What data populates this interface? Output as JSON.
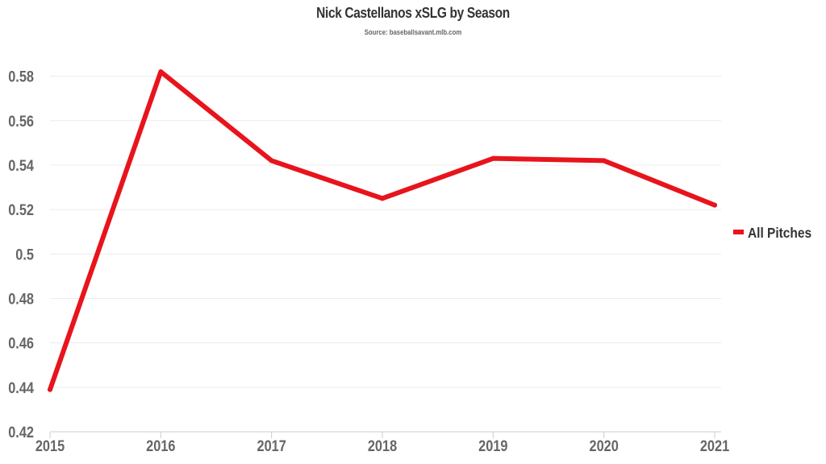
{
  "chart_data": {
    "type": "line",
    "title": "Nick Castellanos xSLG by Season",
    "subtitle": "Source: baseballsavant.mlb.com",
    "xlabel": "",
    "ylabel": "",
    "x": [
      "2015",
      "2016",
      "2017",
      "2018",
      "2019",
      "2020",
      "2021"
    ],
    "ylim": [
      0.42,
      0.59
    ],
    "yticks": [
      0.42,
      0.44,
      0.46,
      0.48,
      0.5,
      0.52,
      0.54,
      0.56,
      0.58
    ],
    "ytick_labels": [
      "0.42",
      "0.44",
      "0.46",
      "0.48",
      "0.5",
      "0.52",
      "0.54",
      "0.56",
      "0.58"
    ],
    "grid": true,
    "legend_position": "right",
    "series": [
      {
        "name": "All Pitches",
        "color": "#e8141c",
        "values": [
          0.439,
          0.582,
          0.542,
          0.525,
          0.543,
          0.542,
          0.522
        ]
      }
    ]
  }
}
